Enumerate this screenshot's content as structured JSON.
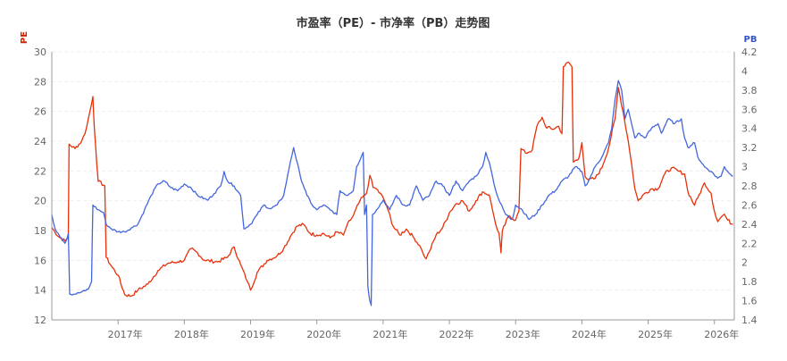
{
  "chart_data": {
    "type": "line",
    "title": "市盈率（PE）- 市净率（PB）走势图",
    "y_left": {
      "label": "PE",
      "ticks": [
        12,
        14,
        16,
        18,
        20,
        22,
        24,
        26,
        28,
        30
      ],
      "range": [
        12,
        30
      ],
      "color": "#cc2200"
    },
    "y_right": {
      "label": "PB",
      "ticks": [
        1.4,
        1.6,
        1.8,
        2,
        2.2,
        2.4,
        2.6,
        2.8,
        3,
        3.2,
        3.4,
        3.6,
        3.8,
        4,
        4.2
      ],
      "tick_labels": [
        "1.4",
        "1.6",
        "1.8",
        "2",
        "2.2",
        "2.4",
        "2.6",
        "2.8",
        "3",
        "3.2",
        "3.4",
        "3.6",
        "3.8",
        "4",
        "4.2"
      ],
      "range": [
        1.4,
        4.2
      ],
      "color": "#3355cc"
    },
    "x_axis": {
      "range": [
        2016.0,
        2026.3
      ],
      "ticks": [
        2017,
        2018,
        2019,
        2020,
        2021,
        2022,
        2023,
        2024,
        2025,
        2026
      ],
      "tick_labels": [
        "2017年",
        "2018年",
        "2019年",
        "2020年",
        "2021年",
        "2022年",
        "2023年",
        "2024年",
        "2025年",
        "2026年"
      ]
    },
    "grid": true,
    "series": [
      {
        "axis": "left",
        "color": "#e8300a",
        "points": [
          [
            2016.0,
            18.2
          ],
          [
            2016.1,
            17.6
          ],
          [
            2016.2,
            17.3
          ],
          [
            2016.25,
            17.5
          ],
          [
            2016.26,
            23.8
          ],
          [
            2016.35,
            23.5
          ],
          [
            2016.45,
            24.0
          ],
          [
            2016.5,
            24.5
          ],
          [
            2016.55,
            25.5
          ],
          [
            2016.6,
            26.5
          ],
          [
            2016.62,
            27.0
          ],
          [
            2016.64,
            25.0
          ],
          [
            2016.7,
            21.3
          ],
          [
            2016.8,
            21.0
          ],
          [
            2016.82,
            16.2
          ],
          [
            2016.9,
            15.6
          ],
          [
            2017.0,
            15.0
          ],
          [
            2017.1,
            13.7
          ],
          [
            2017.2,
            13.6
          ],
          [
            2017.3,
            14.0
          ],
          [
            2017.45,
            14.4
          ],
          [
            2017.6,
            15.3
          ],
          [
            2017.75,
            15.8
          ],
          [
            2017.9,
            15.9
          ],
          [
            2018.0,
            16.0
          ],
          [
            2018.1,
            16.8
          ],
          [
            2018.2,
            16.5
          ],
          [
            2018.3,
            16.0
          ],
          [
            2018.5,
            15.9
          ],
          [
            2018.65,
            16.2
          ],
          [
            2018.75,
            16.9
          ],
          [
            2018.85,
            15.7
          ],
          [
            2018.95,
            14.6
          ],
          [
            2019.0,
            14.0
          ],
          [
            2019.1,
            15.2
          ],
          [
            2019.25,
            16.0
          ],
          [
            2019.4,
            16.3
          ],
          [
            2019.5,
            16.8
          ],
          [
            2019.6,
            17.6
          ],
          [
            2019.7,
            18.3
          ],
          [
            2019.8,
            18.4
          ],
          [
            2019.9,
            17.8
          ],
          [
            2020.0,
            17.7
          ],
          [
            2020.1,
            17.8
          ],
          [
            2020.2,
            17.5
          ],
          [
            2020.3,
            17.9
          ],
          [
            2020.4,
            17.7
          ],
          [
            2020.45,
            18.3
          ],
          [
            2020.55,
            19.0
          ],
          [
            2020.65,
            20.0
          ],
          [
            2020.75,
            20.5
          ],
          [
            2020.8,
            21.7
          ],
          [
            2020.85,
            20.9
          ],
          [
            2020.9,
            20.8
          ],
          [
            2021.0,
            20.2
          ],
          [
            2021.05,
            19.7
          ],
          [
            2021.15,
            18.3
          ],
          [
            2021.25,
            17.7
          ],
          [
            2021.35,
            18.1
          ],
          [
            2021.45,
            17.6
          ],
          [
            2021.55,
            17.0
          ],
          [
            2021.6,
            16.5
          ],
          [
            2021.65,
            16.1
          ],
          [
            2021.7,
            16.6
          ],
          [
            2021.8,
            17.7
          ],
          [
            2021.9,
            18.2
          ],
          [
            2022.0,
            19.2
          ],
          [
            2022.1,
            19.8
          ],
          [
            2022.2,
            20.0
          ],
          [
            2022.3,
            19.3
          ],
          [
            2022.4,
            20.0
          ],
          [
            2022.5,
            20.6
          ],
          [
            2022.6,
            20.4
          ],
          [
            2022.65,
            19.4
          ],
          [
            2022.7,
            18.4
          ],
          [
            2022.75,
            17.8
          ],
          [
            2022.78,
            16.5
          ],
          [
            2022.8,
            18.0
          ],
          [
            2022.9,
            19.0
          ],
          [
            2023.0,
            18.7
          ],
          [
            2023.05,
            19.3
          ],
          [
            2023.08,
            23.5
          ],
          [
            2023.15,
            23.2
          ],
          [
            2023.25,
            23.4
          ],
          [
            2023.32,
            25.0
          ],
          [
            2023.4,
            25.6
          ],
          [
            2023.45,
            25.0
          ],
          [
            2023.55,
            24.8
          ],
          [
            2023.65,
            25.0
          ],
          [
            2023.7,
            24.5
          ],
          [
            2023.72,
            29.0
          ],
          [
            2023.8,
            29.3
          ],
          [
            2023.85,
            29.0
          ],
          [
            2023.87,
            22.6
          ],
          [
            2023.95,
            22.8
          ],
          [
            2024.0,
            23.9
          ],
          [
            2024.05,
            21.6
          ],
          [
            2024.1,
            21.4
          ],
          [
            2024.2,
            21.5
          ],
          [
            2024.3,
            22.2
          ],
          [
            2024.4,
            23.5
          ],
          [
            2024.5,
            25.5
          ],
          [
            2024.55,
            27.6
          ],
          [
            2024.62,
            26.0
          ],
          [
            2024.7,
            24.0
          ],
          [
            2024.75,
            22.5
          ],
          [
            2024.8,
            20.8
          ],
          [
            2024.85,
            20.0
          ],
          [
            2024.95,
            20.5
          ],
          [
            2025.05,
            20.8
          ],
          [
            2025.15,
            20.8
          ],
          [
            2025.25,
            21.8
          ],
          [
            2025.35,
            22.2
          ],
          [
            2025.45,
            22.0
          ],
          [
            2025.55,
            21.8
          ],
          [
            2025.6,
            20.6
          ],
          [
            2025.7,
            19.7
          ],
          [
            2025.75,
            20.2
          ],
          [
            2025.85,
            21.2
          ],
          [
            2025.95,
            20.5
          ],
          [
            2026.0,
            19.3
          ],
          [
            2026.05,
            18.6
          ],
          [
            2026.1,
            18.9
          ],
          [
            2026.15,
            19.1
          ],
          [
            2026.2,
            18.7
          ],
          [
            2026.28,
            18.4
          ]
        ]
      },
      {
        "axis": "right",
        "color": "#4466dd",
        "points": [
          [
            2016.0,
            2.5
          ],
          [
            2016.05,
            2.35
          ],
          [
            2016.1,
            2.3
          ],
          [
            2016.15,
            2.25
          ],
          [
            2016.2,
            2.2
          ],
          [
            2016.25,
            2.3
          ],
          [
            2016.27,
            1.67
          ],
          [
            2016.35,
            1.67
          ],
          [
            2016.45,
            1.69
          ],
          [
            2016.55,
            1.72
          ],
          [
            2016.6,
            1.8
          ],
          [
            2016.62,
            2.6
          ],
          [
            2016.7,
            2.55
          ],
          [
            2016.78,
            2.52
          ],
          [
            2016.82,
            2.4
          ],
          [
            2016.9,
            2.35
          ],
          [
            2017.0,
            2.32
          ],
          [
            2017.1,
            2.32
          ],
          [
            2017.2,
            2.36
          ],
          [
            2017.3,
            2.4
          ],
          [
            2017.4,
            2.55
          ],
          [
            2017.5,
            2.7
          ],
          [
            2017.6,
            2.82
          ],
          [
            2017.7,
            2.85
          ],
          [
            2017.8,
            2.78
          ],
          [
            2017.9,
            2.75
          ],
          [
            2018.0,
            2.82
          ],
          [
            2018.1,
            2.78
          ],
          [
            2018.2,
            2.7
          ],
          [
            2018.35,
            2.65
          ],
          [
            2018.45,
            2.72
          ],
          [
            2018.55,
            2.8
          ],
          [
            2018.6,
            2.95
          ],
          [
            2018.65,
            2.85
          ],
          [
            2018.75,
            2.8
          ],
          [
            2018.85,
            2.7
          ],
          [
            2018.9,
            2.35
          ],
          [
            2019.0,
            2.4
          ],
          [
            2019.1,
            2.5
          ],
          [
            2019.2,
            2.6
          ],
          [
            2019.3,
            2.56
          ],
          [
            2019.4,
            2.6
          ],
          [
            2019.5,
            2.7
          ],
          [
            2019.6,
            3.05
          ],
          [
            2019.65,
            3.2
          ],
          [
            2019.75,
            2.9
          ],
          [
            2019.85,
            2.7
          ],
          [
            2019.95,
            2.58
          ],
          [
            2020.0,
            2.55
          ],
          [
            2020.1,
            2.6
          ],
          [
            2020.2,
            2.55
          ],
          [
            2020.3,
            2.5
          ],
          [
            2020.35,
            2.75
          ],
          [
            2020.45,
            2.7
          ],
          [
            2020.55,
            2.75
          ],
          [
            2020.6,
            3.0
          ],
          [
            2020.7,
            3.15
          ],
          [
            2020.72,
            2.5
          ],
          [
            2020.75,
            2.6
          ],
          [
            2020.77,
            1.75
          ],
          [
            2020.8,
            1.6
          ],
          [
            2020.82,
            1.55
          ],
          [
            2020.84,
            2.5
          ],
          [
            2020.9,
            2.55
          ],
          [
            2021.0,
            2.65
          ],
          [
            2021.1,
            2.55
          ],
          [
            2021.2,
            2.7
          ],
          [
            2021.3,
            2.6
          ],
          [
            2021.4,
            2.6
          ],
          [
            2021.5,
            2.8
          ],
          [
            2021.6,
            2.65
          ],
          [
            2021.7,
            2.7
          ],
          [
            2021.8,
            2.85
          ],
          [
            2021.9,
            2.8
          ],
          [
            2022.0,
            2.7
          ],
          [
            2022.1,
            2.85
          ],
          [
            2022.2,
            2.75
          ],
          [
            2022.3,
            2.85
          ],
          [
            2022.4,
            2.9
          ],
          [
            2022.5,
            3.0
          ],
          [
            2022.55,
            3.15
          ],
          [
            2022.6,
            3.05
          ],
          [
            2022.65,
            2.9
          ],
          [
            2022.7,
            2.75
          ],
          [
            2022.75,
            2.65
          ],
          [
            2022.85,
            2.5
          ],
          [
            2022.95,
            2.45
          ],
          [
            2023.0,
            2.6
          ],
          [
            2023.1,
            2.55
          ],
          [
            2023.2,
            2.45
          ],
          [
            2023.3,
            2.5
          ],
          [
            2023.4,
            2.6
          ],
          [
            2023.5,
            2.7
          ],
          [
            2023.6,
            2.75
          ],
          [
            2023.7,
            2.85
          ],
          [
            2023.8,
            2.9
          ],
          [
            2023.9,
            3.0
          ],
          [
            2024.0,
            2.95
          ],
          [
            2024.05,
            2.8
          ],
          [
            2024.1,
            2.85
          ],
          [
            2024.2,
            3.0
          ],
          [
            2024.3,
            3.1
          ],
          [
            2024.4,
            3.25
          ],
          [
            2024.45,
            3.4
          ],
          [
            2024.5,
            3.7
          ],
          [
            2024.55,
            3.9
          ],
          [
            2024.6,
            3.8
          ],
          [
            2024.65,
            3.5
          ],
          [
            2024.7,
            3.6
          ],
          [
            2024.75,
            3.45
          ],
          [
            2024.8,
            3.3
          ],
          [
            2024.85,
            3.35
          ],
          [
            2024.95,
            3.3
          ],
          [
            2025.05,
            3.4
          ],
          [
            2025.15,
            3.45
          ],
          [
            2025.2,
            3.35
          ],
          [
            2025.3,
            3.5
          ],
          [
            2025.4,
            3.45
          ],
          [
            2025.5,
            3.5
          ],
          [
            2025.55,
            3.3
          ],
          [
            2025.6,
            3.2
          ],
          [
            2025.7,
            3.25
          ],
          [
            2025.75,
            3.1
          ],
          [
            2025.85,
            3.0
          ],
          [
            2025.95,
            2.95
          ],
          [
            2026.05,
            2.88
          ],
          [
            2026.1,
            2.9
          ],
          [
            2026.15,
            3.0
          ],
          [
            2026.2,
            2.95
          ],
          [
            2026.28,
            2.9
          ]
        ]
      }
    ]
  }
}
